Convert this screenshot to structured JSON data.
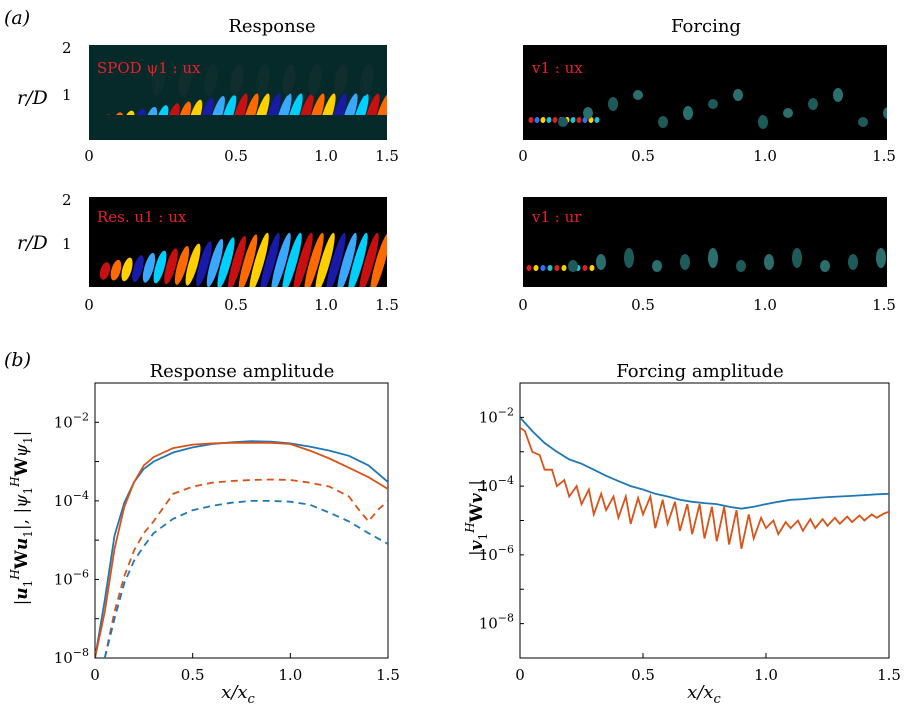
{
  "panel_labels": {
    "a": "(a)",
    "b": "(b)"
  },
  "fields": {
    "col_titles": [
      "Response",
      "Forcing"
    ],
    "ylabel": "r/D",
    "yticks": [
      "2",
      "1"
    ],
    "xticks": [
      "0",
      "0.5",
      "1.0",
      "1.5"
    ],
    "annotations": [
      "SPOD ψ1 : ux",
      "v1 : ux",
      "Res. u1 : ux",
      "v1 : ur"
    ],
    "colors": {
      "background": "#062a2a",
      "annotation": "#e8202a"
    }
  },
  "chart_data": [
    {
      "type": "line",
      "title": "Response amplitude",
      "xlabel": "x/x_c",
      "ylabel": "|u1^H W u1|, |ψ1^H W ψ1|",
      "xlim": [
        0,
        1.5
      ],
      "ylim": [
        1e-08,
        0.1
      ],
      "yscale": "log",
      "xticks": [
        "0",
        "0.5",
        "1.0",
        "1.5"
      ],
      "yticks": [
        "10^-8",
        "10^-6",
        "10^-4",
        "10^-2"
      ],
      "series": [
        {
          "color": "#1f77b4",
          "dash": "solid",
          "x": [
            0.0,
            0.05,
            0.1,
            0.15,
            0.2,
            0.25,
            0.3,
            0.4,
            0.5,
            0.6,
            0.7,
            0.8,
            0.9,
            1.0,
            1.1,
            1.2,
            1.3,
            1.4,
            1.5
          ],
          "y": [
            1e-08,
            3e-07,
            1.3e-05,
            9e-05,
            0.0003,
            0.00065,
            0.001,
            0.0017,
            0.0023,
            0.0028,
            0.0031,
            0.0033,
            0.0032,
            0.0029,
            0.0024,
            0.0019,
            0.0014,
            0.0008,
            0.0003
          ]
        },
        {
          "color": "#d95319",
          "dash": "solid",
          "x": [
            0.0,
            0.05,
            0.1,
            0.15,
            0.2,
            0.25,
            0.3,
            0.4,
            0.5,
            0.6,
            0.7,
            0.8,
            0.9,
            1.0,
            1.1,
            1.2,
            1.3,
            1.4,
            1.5
          ],
          "y": [
            1e-08,
            1.5e-07,
            6e-06,
            7e-05,
            0.0003,
            0.0008,
            0.0013,
            0.0022,
            0.0027,
            0.0029,
            0.003,
            0.003,
            0.003,
            0.0028,
            0.0019,
            0.0012,
            0.0007,
            0.0004,
            0.0002
          ]
        },
        {
          "color": "#d95319",
          "dash": "dashed",
          "x": [
            0.05,
            0.07,
            0.1,
            0.15,
            0.2,
            0.25,
            0.3,
            0.4,
            0.5,
            0.6,
            0.7,
            0.8,
            0.9,
            1.0,
            1.1,
            1.2,
            1.3,
            1.35,
            1.4,
            1.45,
            1.5
          ],
          "y": [
            1e-08,
            3e-08,
            1.5e-07,
            1.2e-06,
            5.5e-06,
            1.5e-05,
            3e-05,
            0.00015,
            0.00023,
            0.00029,
            0.00032,
            0.00034,
            0.00035,
            0.00034,
            0.00029,
            0.00023,
            0.00013,
            6e-05,
            3e-05,
            6e-05,
            0.0001
          ]
        },
        {
          "color": "#1f77b4",
          "dash": "dashed",
          "x": [
            0.05,
            0.07,
            0.1,
            0.15,
            0.2,
            0.25,
            0.3,
            0.4,
            0.5,
            0.6,
            0.7,
            0.8,
            0.9,
            1.0,
            1.1,
            1.2,
            1.3,
            1.4,
            1.5
          ],
          "y": [
            1e-08,
            2.5e-08,
            1e-07,
            8e-07,
            3e-06,
            7e-06,
            1.5e-05,
            3.5e-05,
            5.8e-05,
            7.5e-05,
            9e-05,
            0.0001,
            0.0001,
            9.5e-05,
            8e-05,
            5e-05,
            3e-05,
            1.5e-05,
            8e-06
          ]
        }
      ]
    },
    {
      "type": "line",
      "title": "Forcing amplitude",
      "xlabel": "x/x_c",
      "ylabel": "|v1^H W v1|",
      "xlim": [
        0,
        1.5
      ],
      "ylim": [
        1e-09,
        0.1
      ],
      "yscale": "log",
      "xticks": [
        "0",
        "0.5",
        "1.0",
        "1.5"
      ],
      "yticks": [
        "10^-8",
        "10^-6",
        "10^-4",
        "10^-2"
      ],
      "series": [
        {
          "color": "#1f77b4",
          "dash": "solid",
          "x": [
            0.0,
            0.05,
            0.1,
            0.15,
            0.2,
            0.25,
            0.3,
            0.35,
            0.4,
            0.45,
            0.5,
            0.55,
            0.6,
            0.65,
            0.7,
            0.75,
            0.8,
            0.85,
            0.9,
            0.95,
            1.0,
            1.05,
            1.1,
            1.15,
            1.2,
            1.25,
            1.3,
            1.35,
            1.4,
            1.45,
            1.5
          ],
          "y": [
            0.01,
            0.004,
            0.0018,
            0.001,
            0.0006,
            0.00045,
            0.0003,
            0.0002,
            0.00014,
            0.0001,
            8e-05,
            6e-05,
            5e-05,
            4e-05,
            3.5e-05,
            3.2e-05,
            3e-05,
            2.5e-05,
            2.2e-05,
            2.5e-05,
            3e-05,
            3.5e-05,
            4e-05,
            4.2e-05,
            4.5e-05,
            4.8e-05,
            5e-05,
            5.2e-05,
            5.5e-05,
            5.8e-05,
            6e-05
          ]
        },
        {
          "color": "#d95319",
          "dash": "solid",
          "x": [
            0.0,
            0.02,
            0.05,
            0.08,
            0.1,
            0.13,
            0.15,
            0.18,
            0.2,
            0.23,
            0.25,
            0.28,
            0.3,
            0.33,
            0.35,
            0.38,
            0.4,
            0.43,
            0.45,
            0.48,
            0.5,
            0.53,
            0.55,
            0.58,
            0.6,
            0.63,
            0.65,
            0.68,
            0.7,
            0.73,
            0.75,
            0.78,
            0.8,
            0.83,
            0.85,
            0.88,
            0.9,
            0.93,
            0.95,
            0.98,
            1.0,
            1.03,
            1.05,
            1.08,
            1.1,
            1.13,
            1.15,
            1.18,
            1.2,
            1.23,
            1.25,
            1.28,
            1.3,
            1.33,
            1.35,
            1.38,
            1.4,
            1.43,
            1.45,
            1.48,
            1.5
          ],
          "y": [
            0.005,
            0.004,
            0.001,
            0.0008,
            0.0003,
            0.0003,
            0.0001,
            0.00015,
            5e-05,
            0.0001,
            3e-05,
            8e-05,
            1.5e-05,
            6e-05,
            2e-05,
            5e-05,
            1.2e-05,
            5e-05,
            8e-06,
            4.5e-05,
            1.5e-05,
            5e-05,
            6e-06,
            4e-05,
            8e-06,
            3.5e-05,
            5e-06,
            3e-05,
            4e-06,
            3e-05,
            3e-06,
            2.5e-05,
            2.5e-06,
            2.5e-05,
            2e-06,
            2e-05,
            1.5e-06,
            1.5e-05,
            3e-06,
            1.2e-05,
            6e-06,
            1e-05,
            4e-06,
            9e-06,
            6e-06,
            1e-05,
            5e-06,
            1.1e-05,
            6e-06,
            1.1e-05,
            7e-06,
            1.2e-05,
            8e-06,
            1.3e-05,
            9e-06,
            1.4e-05,
            1e-05,
            1.5e-05,
            1.2e-05,
            1.6e-05,
            1.8e-05
          ]
        }
      ]
    }
  ]
}
